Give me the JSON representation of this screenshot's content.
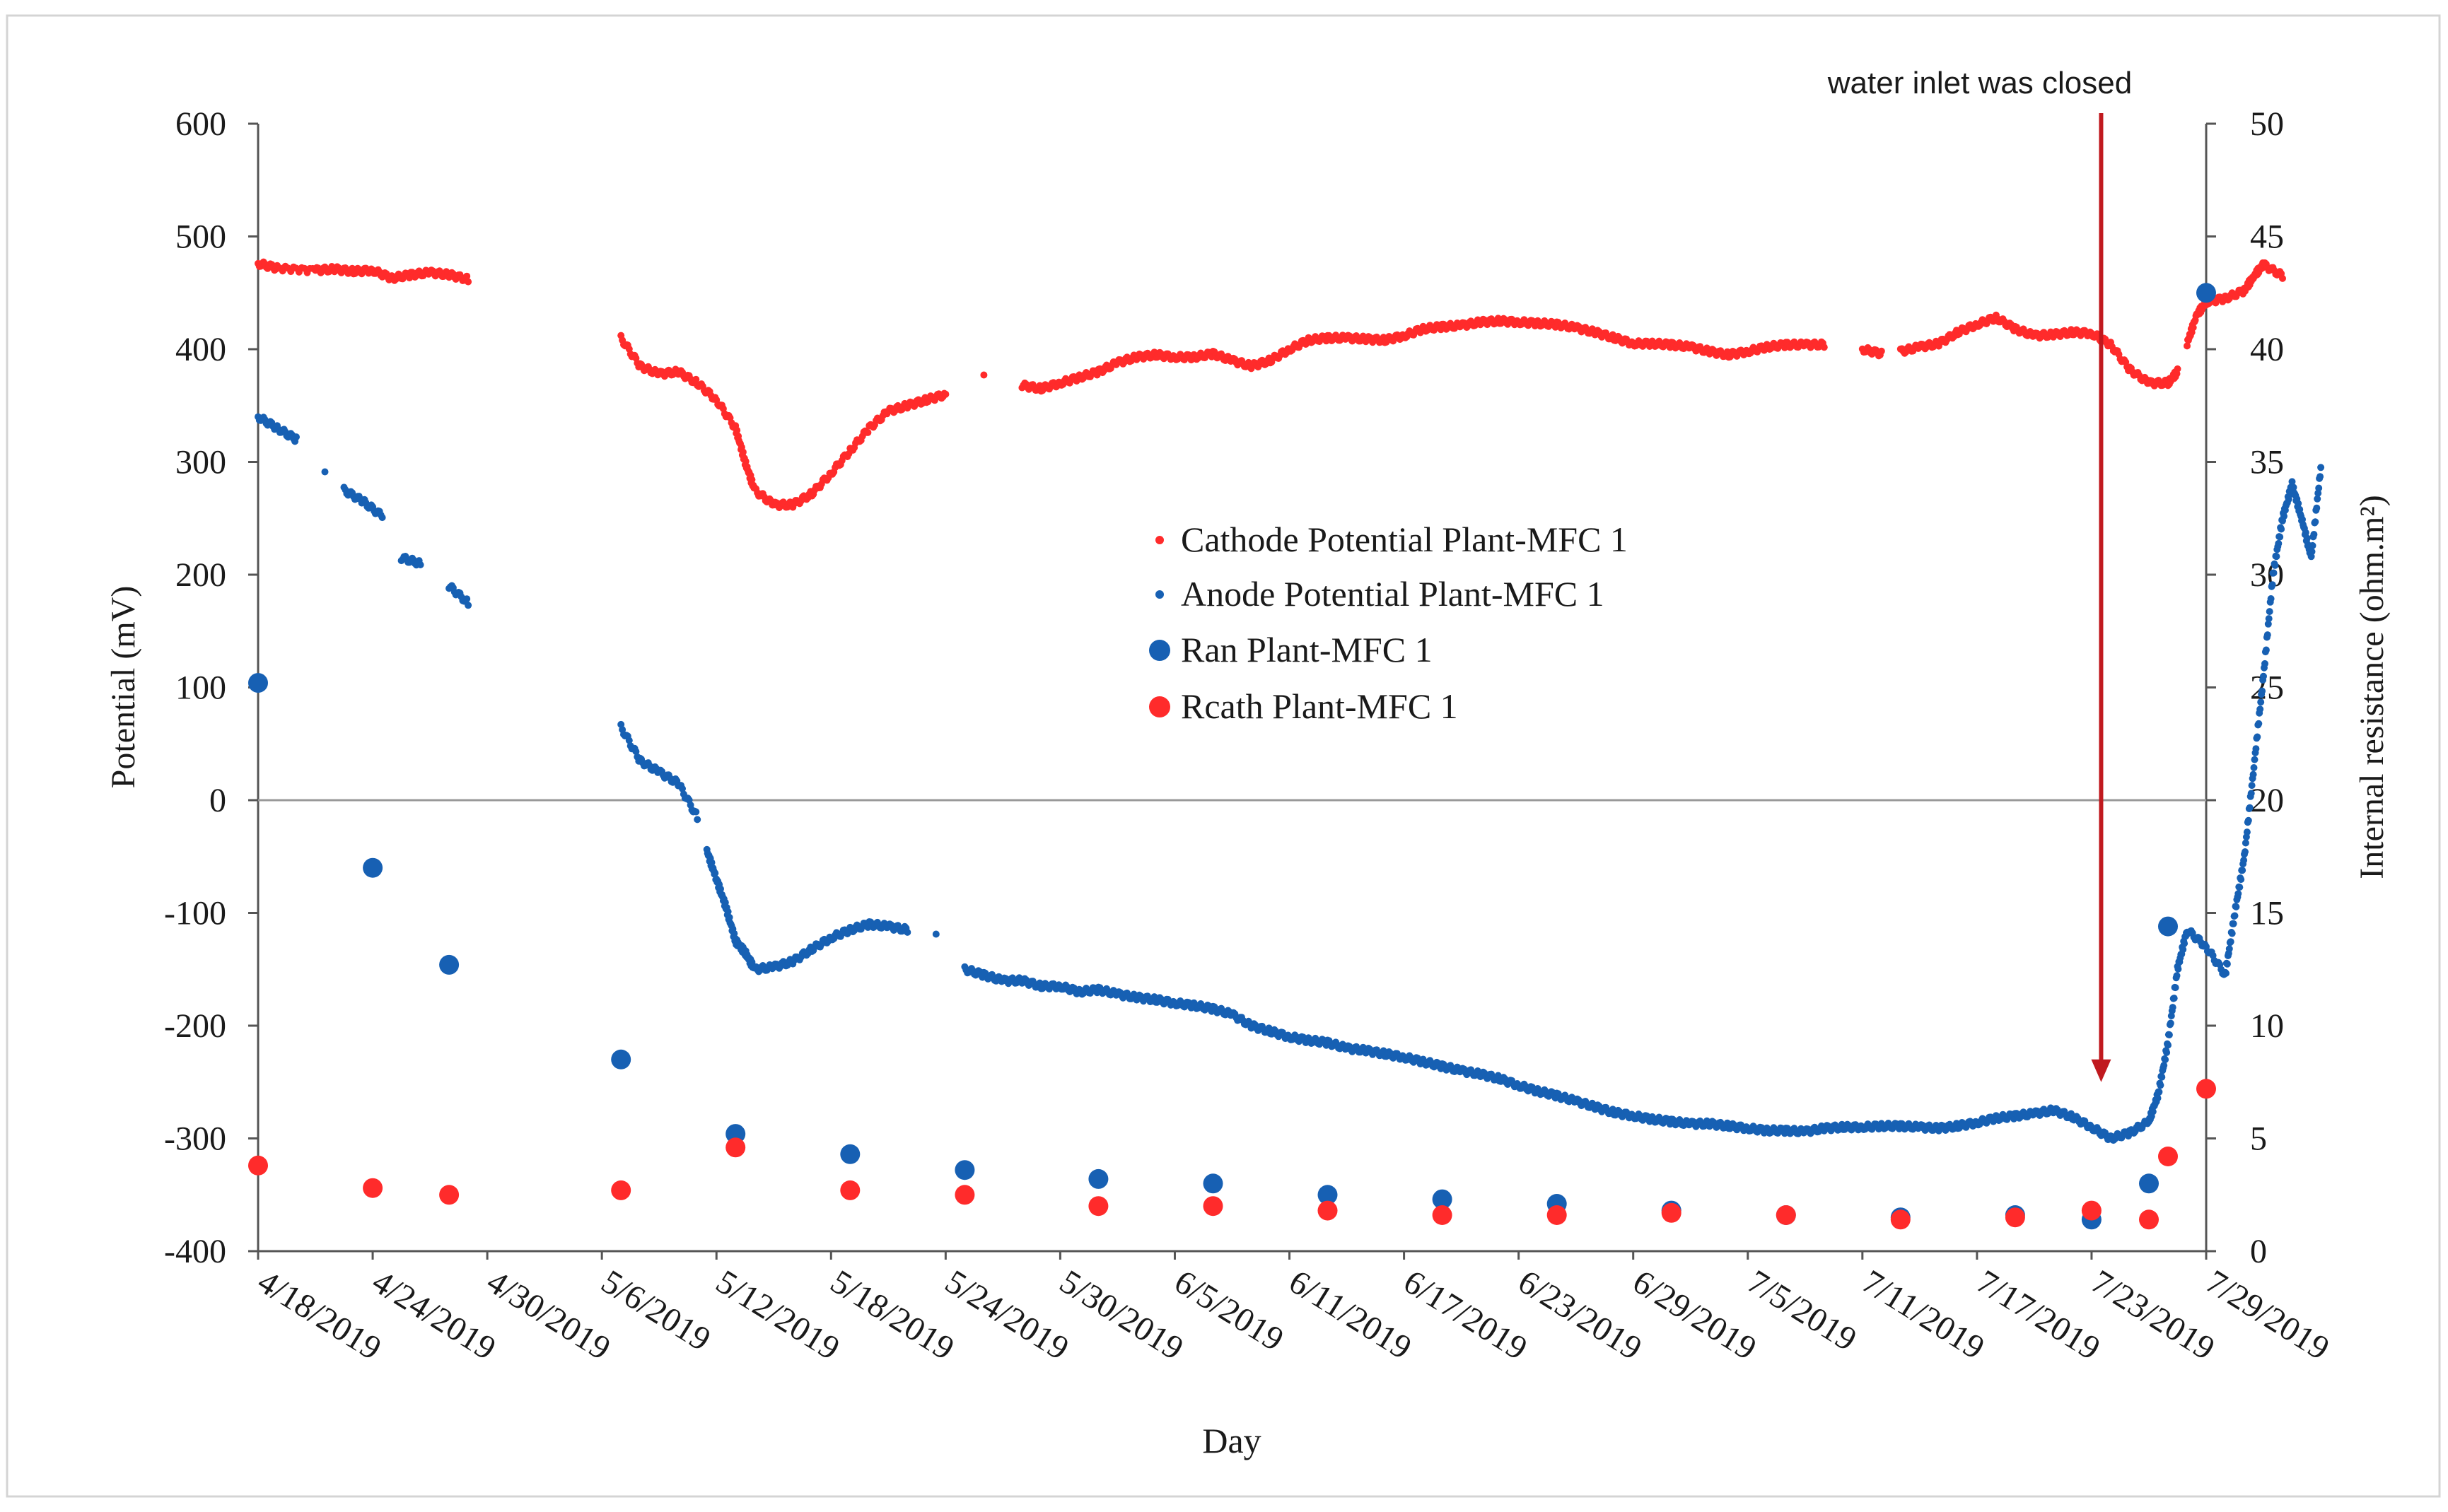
{
  "chart_data": {
    "type": "scatter",
    "title": "",
    "xlabel": "Day",
    "ylabel": "Potential (mV)",
    "y2label": "Internal resistance (ohm.m²)",
    "x_start_date": "4/18/2019",
    "xlim_days": [
      0,
      102
    ],
    "ylim": [
      -400,
      600
    ],
    "y2lim": [
      0,
      50
    ],
    "grid": false,
    "legend_position": "center",
    "x_tick_labels": [
      "4/18/2019",
      "4/24/2019",
      "4/30/2019",
      "5/6/2019",
      "5/12/2019",
      "5/18/2019",
      "5/24/2019",
      "5/30/2019",
      "6/5/2019",
      "6/11/2019",
      "6/17/2019",
      "6/23/2019",
      "6/29/2019",
      "7/5/2019",
      "7/11/2019",
      "7/17/2019",
      "7/23/2019",
      "7/29/2019"
    ],
    "y_ticks": [
      600,
      500,
      400,
      300,
      200,
      100,
      0,
      -100,
      -200,
      -300,
      -400
    ],
    "y2_ticks": [
      50,
      45,
      40,
      35,
      30,
      25,
      20,
      15,
      10,
      5,
      0
    ],
    "annotation": {
      "text": "water inlet was closed",
      "x_day": 96.5,
      "arrow_to_mv": -250
    },
    "series": [
      {
        "name": "Cathode Potential Plant-MFC 1",
        "axis": "left",
        "color": "#ff2b2b",
        "marker": "small",
        "segments": [
          [
            [
              0,
              476
            ],
            [
              1,
              472
            ],
            [
              3,
              470
            ],
            [
              4,
              471
            ],
            [
              5,
              469
            ],
            [
              6,
              470
            ],
            [
              7,
              463
            ],
            [
              8,
              466
            ],
            [
              9,
              468
            ],
            [
              10,
              466
            ],
            [
              11,
              462
            ]
          ],
          [
            [
              19,
              410
            ],
            [
              20,
              385
            ],
            [
              21,
              378
            ],
            [
              22,
              380
            ],
            [
              23,
              370
            ],
            [
              24,
              355
            ],
            [
              25,
              330
            ],
            [
              25.5,
              300
            ],
            [
              26,
              275
            ],
            [
              27,
              262
            ],
            [
              28,
              262
            ],
            [
              29,
              272
            ],
            [
              30,
              290
            ],
            [
              31,
              310
            ],
            [
              32,
              330
            ],
            [
              33,
              345
            ],
            [
              34,
              350
            ],
            [
              35,
              355
            ],
            [
              36,
              360
            ]
          ],
          [
            [
              38,
              375
            ]
          ],
          [
            [
              40,
              368
            ],
            [
              41,
              365
            ],
            [
              42,
              370
            ],
            [
              43,
              375
            ],
            [
              44,
              380
            ],
            [
              45,
              388
            ],
            [
              46,
              393
            ],
            [
              47,
              395
            ],
            [
              48,
              393
            ],
            [
              49,
              393
            ],
            [
              50,
              396
            ],
            [
              51,
              390
            ],
            [
              52,
              385
            ],
            [
              53,
              390
            ],
            [
              54,
              400
            ],
            [
              55,
              408
            ],
            [
              56,
              410
            ],
            [
              57,
              410
            ],
            [
              58,
              409
            ],
            [
              59,
              408
            ],
            [
              60,
              412
            ],
            [
              61,
              418
            ],
            [
              62,
              420
            ],
            [
              63,
              421
            ],
            [
              64,
              424
            ],
            [
              65,
              425
            ],
            [
              66,
              424
            ],
            [
              67,
              423
            ],
            [
              68,
              422
            ],
            [
              69,
              419
            ],
            [
              70,
              415
            ],
            [
              71,
              410
            ],
            [
              72,
              405
            ],
            [
              73,
              405
            ],
            [
              74,
              404
            ],
            [
              75,
              402
            ],
            [
              76,
              398
            ],
            [
              77,
              395
            ],
            [
              78,
              398
            ],
            [
              79,
              402
            ],
            [
              80,
              404
            ],
            [
              81,
              404
            ],
            [
              82,
              404
            ]
          ],
          [
            [
              84,
              400
            ],
            [
              85,
              396
            ]
          ],
          [
            [
              86,
              398
            ],
            [
              87,
              402
            ],
            [
              88,
              405
            ],
            [
              89,
              415
            ],
            [
              90,
              422
            ],
            [
              91,
              428
            ],
            [
              92,
              418
            ],
            [
              93,
              412
            ],
            [
              94,
              413
            ],
            [
              95,
              415
            ],
            [
              96,
              414
            ],
            [
              97,
              404
            ],
            [
              98,
              382
            ],
            [
              99,
              370
            ],
            [
              100,
              370
            ],
            [
              100.5,
              380
            ]
          ],
          [
            [
              101,
              405
            ],
            [
              101.5,
              430
            ],
            [
              102,
              442
            ],
            [
              103,
              445
            ],
            [
              104,
              452
            ],
            [
              104.5,
              465
            ],
            [
              105,
              475
            ],
            [
              106,
              465
            ]
          ]
        ]
      },
      {
        "name": "Anode Potential Plant-MFC 1",
        "axis": "left",
        "color": "#1760b3",
        "marker": "small",
        "segments": [
          [
            [
              0,
              340
            ],
            [
              1,
              330
            ],
            [
              2,
              320
            ]
          ],
          [
            [
              3.5,
              290
            ]
          ],
          [
            [
              4.5,
              275
            ],
            [
              5.5,
              265
            ],
            [
              6.5,
              252
            ]
          ],
          [
            [
              7.5,
              215
            ],
            [
              8.5,
              210
            ]
          ],
          [
            [
              10,
              190
            ],
            [
              11,
              175
            ]
          ],
          [
            [
              19,
              65
            ],
            [
              20,
              35
            ],
            [
              21,
              25
            ],
            [
              22,
              15
            ],
            [
              23,
              -15
            ]
          ],
          [
            [
              23.5,
              -45
            ],
            [
              24,
              -70
            ],
            [
              24.5,
              -95
            ],
            [
              25,
              -125
            ],
            [
              25.5,
              -135
            ],
            [
              26,
              -150
            ],
            [
              27,
              -148
            ],
            [
              28,
              -143
            ],
            [
              29,
              -132
            ],
            [
              30,
              -122
            ],
            [
              31,
              -115
            ],
            [
              32,
              -110
            ],
            [
              33,
              -112
            ],
            [
              34,
              -115
            ]
          ],
          [
            [
              35.5,
              -120
            ]
          ],
          [
            [
              37,
              -150
            ],
            [
              38,
              -155
            ],
            [
              39,
              -160
            ],
            [
              40,
              -160
            ],
            [
              41,
              -165
            ],
            [
              42,
              -165
            ],
            [
              43,
              -170
            ],
            [
              44,
              -168
            ],
            [
              45,
              -172
            ],
            [
              46,
              -175
            ],
            [
              47,
              -177
            ],
            [
              48,
              -180
            ],
            [
              49,
              -182
            ],
            [
              50,
              -185
            ],
            [
              51,
              -190
            ],
            [
              52,
              -200
            ],
            [
              53,
              -205
            ],
            [
              54,
              -210
            ],
            [
              55,
              -213
            ],
            [
              56,
              -215
            ],
            [
              57,
              -220
            ],
            [
              58,
              -222
            ],
            [
              59,
              -225
            ],
            [
              60,
              -228
            ],
            [
              61,
              -232
            ],
            [
              62,
              -236
            ],
            [
              63,
              -240
            ],
            [
              64,
              -243
            ],
            [
              65,
              -247
            ],
            [
              66,
              -253
            ],
            [
              67,
              -258
            ],
            [
              68,
              -262
            ],
            [
              69,
              -267
            ],
            [
              70,
              -272
            ],
            [
              71,
              -277
            ],
            [
              72,
              -280
            ],
            [
              73,
              -283
            ],
            [
              74,
              -285
            ],
            [
              75,
              -287
            ],
            [
              76,
              -287
            ],
            [
              77,
              -289
            ],
            [
              78,
              -291
            ],
            [
              79,
              -293
            ],
            [
              80,
              -293
            ],
            [
              81,
              -294
            ],
            [
              82,
              -291
            ],
            [
              83,
              -290
            ],
            [
              84,
              -290
            ],
            [
              85,
              -289
            ],
            [
              86,
              -289
            ],
            [
              87,
              -290
            ],
            [
              88,
              -291
            ],
            [
              89,
              -289
            ],
            [
              90,
              -286
            ],
            [
              91,
              -282
            ],
            [
              92,
              -280
            ],
            [
              93,
              -278
            ],
            [
              94,
              -275
            ],
            [
              95,
              -281
            ],
            [
              96,
              -290
            ],
            [
              97,
              -300
            ],
            [
              98,
              -295
            ],
            [
              99,
              -285
            ],
            [
              99.5,
              -260
            ],
            [
              100,
              -215
            ],
            [
              100.5,
              -150
            ],
            [
              101,
              -115
            ],
            [
              102,
              -130
            ],
            [
              103,
              -155
            ],
            [
              103.5,
              -100
            ],
            [
              104,
              -50
            ],
            [
              104.5,
              30
            ],
            [
              105,
              110
            ],
            [
              105.5,
              200
            ],
            [
              106,
              250
            ],
            [
              106.5,
              280
            ],
            [
              107,
              250
            ],
            [
              107.5,
              215
            ],
            [
              108,
              295
            ]
          ]
        ]
      },
      {
        "name": "Ran Plant-MFC 1",
        "axis": "right",
        "color": "#1760b3",
        "marker": "large",
        "points": [
          [
            0,
            25.2
          ],
          [
            6,
            17
          ],
          [
            10,
            12.7
          ],
          [
            19,
            8.5
          ],
          [
            25,
            5.2
          ],
          [
            31,
            4.3
          ],
          [
            37,
            3.6
          ],
          [
            44,
            3.2
          ],
          [
            50,
            3
          ],
          [
            56,
            2.5
          ],
          [
            62,
            2.3
          ],
          [
            68,
            2.1
          ],
          [
            74,
            1.8
          ],
          [
            80,
            1.6
          ],
          [
            86,
            1.5
          ],
          [
            92,
            1.6
          ],
          [
            96,
            1.4
          ],
          [
            99,
            3
          ],
          [
            100,
            14.4
          ],
          [
            102,
            42.5
          ]
        ]
      },
      {
        "name": "Rcath Plant-MFC 1",
        "axis": "right",
        "color": "#ff2b2b",
        "marker": "large",
        "points": [
          [
            0,
            3.8
          ],
          [
            6,
            2.8
          ],
          [
            10,
            2.5
          ],
          [
            19,
            2.7
          ],
          [
            25,
            4.6
          ],
          [
            31,
            2.7
          ],
          [
            37,
            2.5
          ],
          [
            44,
            2
          ],
          [
            50,
            2
          ],
          [
            56,
            1.8
          ],
          [
            62,
            1.6
          ],
          [
            68,
            1.6
          ],
          [
            74,
            1.7
          ],
          [
            80,
            1.6
          ],
          [
            86,
            1.4
          ],
          [
            92,
            1.5
          ],
          [
            96,
            1.8
          ],
          [
            99,
            1.4
          ],
          [
            100,
            4.2
          ],
          [
            102,
            7.2
          ]
        ]
      }
    ]
  }
}
